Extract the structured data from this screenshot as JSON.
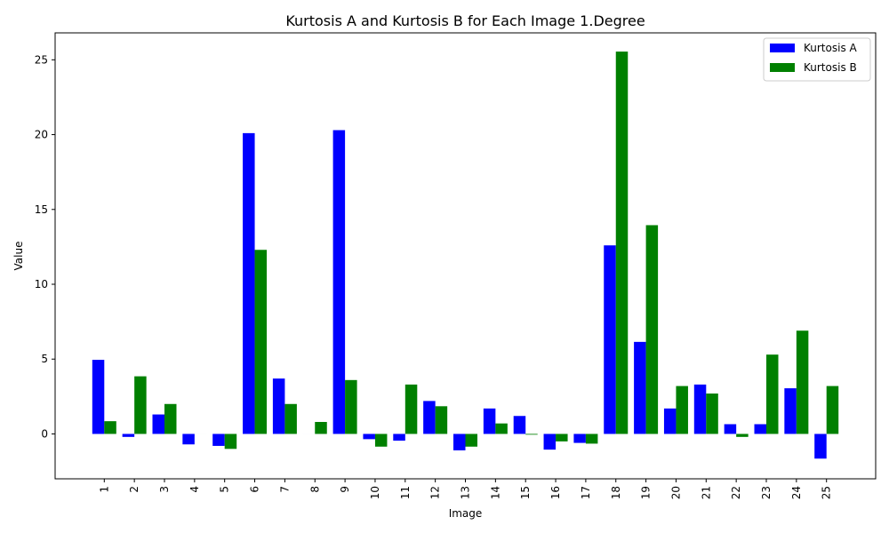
{
  "chart_data": {
    "type": "bar",
    "title": "Kurtosis A and Kurtosis B for Each Image 1.Degree",
    "xlabel": "Image",
    "ylabel": "Value",
    "categories": [
      "1",
      "2",
      "3",
      "4",
      "5",
      "6",
      "7",
      "8",
      "9",
      "10",
      "11",
      "12",
      "13",
      "14",
      "15",
      "16",
      "17",
      "18",
      "19",
      "20",
      "21",
      "22",
      "23",
      "24",
      "25"
    ],
    "yticks": [
      0,
      5,
      10,
      15,
      20,
      25
    ],
    "ylim": [
      -3.0,
      26.8
    ],
    "grid": false,
    "legend_position": "top-right",
    "series": [
      {
        "name": "Kurtosis A",
        "color": "#0000ff",
        "values": [
          4.95,
          -0.2,
          1.3,
          -0.7,
          -0.8,
          20.1,
          3.7,
          0.0,
          20.3,
          -0.35,
          -0.45,
          2.2,
          -1.1,
          1.7,
          1.2,
          -1.05,
          -0.6,
          12.6,
          6.15,
          1.7,
          3.3,
          0.65,
          0.65,
          3.05,
          -1.65
        ]
      },
      {
        "name": "Kurtosis B",
        "color": "#008000",
        "values": [
          0.85,
          3.85,
          2.0,
          0.0,
          -1.0,
          12.3,
          2.0,
          0.8,
          3.6,
          -0.85,
          3.3,
          1.85,
          -0.85,
          0.7,
          -0.05,
          -0.5,
          -0.65,
          25.55,
          13.95,
          3.2,
          2.7,
          -0.2,
          5.3,
          6.9,
          3.2
        ]
      }
    ]
  }
}
